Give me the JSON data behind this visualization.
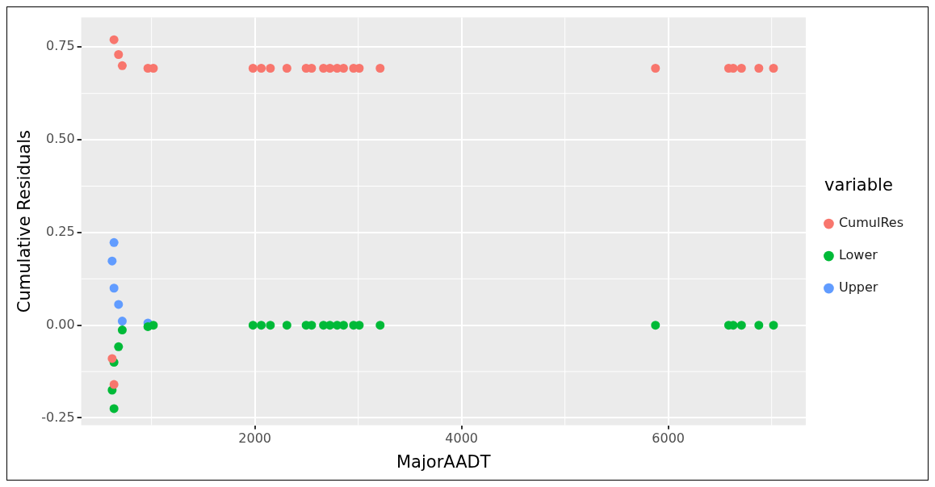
{
  "chart_data": {
    "type": "scatter",
    "xlabel": "MajorAADT",
    "ylabel": "Cumulative Residuals",
    "legend_title": "variable",
    "legend": "right",
    "grid": true,
    "marker": "circle",
    "xlim": [
      320,
      7330
    ],
    "xticks": [
      2000,
      4000,
      6000
    ],
    "ylim": [
      -0.27,
      0.83
    ],
    "yticks": [
      {
        "value": -0.25,
        "label": "-0.25"
      },
      {
        "value": 0,
        "label": "0.00"
      },
      {
        "value": 0.25,
        "label": "0.25"
      },
      {
        "value": 0.5,
        "label": "0.50"
      },
      {
        "value": 0.75,
        "label": "0.75"
      }
    ],
    "series": [
      {
        "name": "CumulRes",
        "color": "#f8766d",
        "x": [
          637,
          681,
          717,
          965,
          1018,
          619,
          637,
          1982,
          2062,
          2150,
          2310,
          2496,
          2549,
          2664,
          2726,
          2796,
          2858,
          2955,
          3010,
          3212,
          5876,
          6584,
          6628,
          6708,
          6876,
          7018
        ],
        "values": [
          0.77,
          0.73,
          0.7,
          0.693,
          0.693,
          -0.09,
          -0.16,
          0.693,
          0.693,
          0.693,
          0.693,
          0.693,
          0.693,
          0.693,
          0.693,
          0.693,
          0.693,
          0.693,
          0.693,
          0.693,
          0.693,
          0.693,
          0.693,
          0.693,
          0.693,
          0.693
        ]
      },
      {
        "name": "Lower",
        "color": "#00ba38",
        "x": [
          637,
          619,
          637,
          681,
          717,
          965,
          1018,
          1982,
          2062,
          2150,
          2310,
          2496,
          2549,
          2664,
          2726,
          2796,
          2858,
          2955,
          3010,
          3212,
          5876,
          6584,
          6628,
          6708,
          6876,
          7018
        ],
        "values": [
          -0.225,
          -0.175,
          -0.1,
          -0.058,
          -0.013,
          -0.004,
          0,
          0,
          0,
          0,
          0,
          0,
          0,
          0,
          0,
          0,
          0,
          0,
          0,
          0,
          0,
          0,
          0,
          0,
          0,
          0
        ]
      },
      {
        "name": "Upper",
        "color": "#619cff",
        "x": [
          637,
          619,
          637,
          681,
          717,
          965
        ],
        "values": [
          0.223,
          0.173,
          0.1,
          0.056,
          0.011,
          0.006
        ]
      }
    ]
  }
}
